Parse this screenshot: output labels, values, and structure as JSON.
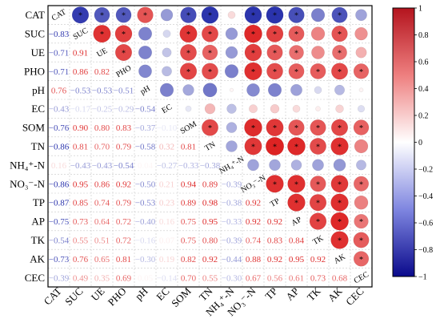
{
  "chart_data": {
    "type": "heatmap",
    "variables": [
      "CAT",
      "SUC",
      "UE",
      "PHO",
      "pH",
      "EC",
      "SOM",
      "TN",
      "NH₄⁺-N",
      "NO₃⁻-N",
      "TP",
      "AP",
      "TK",
      "AK",
      "CEC"
    ],
    "lower_triangle_labels": [
      [],
      [
        "−0.83"
      ],
      [
        "−0.71",
        "0.91"
      ],
      [
        "−0.71",
        "0.86",
        "0.82"
      ],
      [
        "0.76",
        "−0.53",
        "−0.53",
        "−0.51"
      ],
      [
        "−0.43",
        "−0.17",
        "−0.25",
        "−0.29",
        "−0.54"
      ],
      [
        "−0.76",
        "0.90",
        "0.80",
        "0.83",
        "−0.37",
        "−0.10"
      ],
      [
        "−0.86",
        "0.81",
        "0.70",
        "0.79",
        "−0.58",
        "0.32",
        "0.81"
      ],
      [
        "0.16",
        "−0.43",
        "−0.43",
        "−0.54",
        "0.04",
        "−0.27",
        "−0.33",
        "−0.38"
      ],
      [
        "−0.86",
        "0.95",
        "0.86",
        "0.92",
        "−0.50",
        "0.21",
        "0.94",
        "0.89",
        "−0.39"
      ],
      [
        "−0.87",
        "0.85",
        "0.74",
        "0.79",
        "−0.53",
        "0.23",
        "0.89",
        "0.98",
        "−0.38",
        "0.92"
      ],
      [
        "−0.75",
        "0.73",
        "0.64",
        "0.72",
        "−0.40",
        "0.16",
        "0.75",
        "0.95",
        "−0.33",
        "0.92",
        "0.92"
      ],
      [
        "−0.54",
        "0.55",
        "0.51",
        "0.72",
        "−0.16",
        "0.07",
        "0.75",
        "0.80",
        "−0.39",
        "0.74",
        "0.83",
        "0.84"
      ],
      [
        "−0.73",
        "0.76",
        "0.65",
        "0.81",
        "−0.30",
        "0.19",
        "0.82",
        "0.92",
        "−0.44",
        "0.88",
        "0.92",
        "0.95",
        "0.92"
      ],
      [
        "−0.39",
        "0.49",
        "0.35",
        "0.69",
        "0.05",
        "−0.14",
        "0.70",
        "0.55",
        "−0.30",
        "0.67",
        "0.56",
        "0.61",
        "0.73",
        "0.68"
      ]
    ],
    "upper_triangle_circles": [
      {
        "row": "CAT",
        "col": "SUC",
        "r": -0.83,
        "sig": true
      },
      {
        "row": "CAT",
        "col": "UE",
        "r": -0.71,
        "sig": true
      },
      {
        "row": "CAT",
        "col": "PHO",
        "r": -0.71,
        "sig": true
      },
      {
        "row": "CAT",
        "col": "pH",
        "r": 0.76,
        "sig": true
      },
      {
        "row": "CAT",
        "col": "EC",
        "r": -0.43,
        "sig": false
      },
      {
        "row": "CAT",
        "col": "SOM",
        "r": -0.76,
        "sig": true
      },
      {
        "row": "CAT",
        "col": "TN",
        "r": -0.86,
        "sig": true
      },
      {
        "row": "CAT",
        "col": "NH₄⁺-N",
        "r": 0.16,
        "sig": false
      },
      {
        "row": "CAT",
        "col": "NO₃⁻-N",
        "r": -0.86,
        "sig": true
      },
      {
        "row": "CAT",
        "col": "TP",
        "r": -0.87,
        "sig": true
      },
      {
        "row": "CAT",
        "col": "AP",
        "r": -0.75,
        "sig": true
      },
      {
        "row": "CAT",
        "col": "TK",
        "r": -0.54,
        "sig": false
      },
      {
        "row": "CAT",
        "col": "AK",
        "r": -0.73,
        "sig": true
      },
      {
        "row": "CAT",
        "col": "CEC",
        "r": -0.39,
        "sig": false
      },
      {
        "row": "SUC",
        "col": "UE",
        "r": 0.91,
        "sig": true
      },
      {
        "row": "SUC",
        "col": "PHO",
        "r": 0.86,
        "sig": true
      },
      {
        "row": "SUC",
        "col": "pH",
        "r": -0.53,
        "sig": false
      },
      {
        "row": "SUC",
        "col": "EC",
        "r": -0.17,
        "sig": false
      },
      {
        "row": "SUC",
        "col": "SOM",
        "r": 0.9,
        "sig": true
      },
      {
        "row": "SUC",
        "col": "TN",
        "r": 0.81,
        "sig": true
      },
      {
        "row": "SUC",
        "col": "NH₄⁺-N",
        "r": -0.43,
        "sig": false
      },
      {
        "row": "SUC",
        "col": "NO₃⁻-N",
        "r": 0.95,
        "sig": true
      },
      {
        "row": "SUC",
        "col": "TP",
        "r": 0.85,
        "sig": true
      },
      {
        "row": "SUC",
        "col": "AP",
        "r": 0.73,
        "sig": true
      },
      {
        "row": "SUC",
        "col": "TK",
        "r": 0.55,
        "sig": false
      },
      {
        "row": "SUC",
        "col": "AK",
        "r": 0.76,
        "sig": true
      },
      {
        "row": "SUC",
        "col": "CEC",
        "r": 0.49,
        "sig": false
      },
      {
        "row": "UE",
        "col": "PHO",
        "r": 0.82,
        "sig": true
      },
      {
        "row": "UE",
        "col": "pH",
        "r": -0.53,
        "sig": false
      },
      {
        "row": "UE",
        "col": "EC",
        "r": -0.25,
        "sig": false
      },
      {
        "row": "UE",
        "col": "SOM",
        "r": 0.8,
        "sig": true
      },
      {
        "row": "UE",
        "col": "TN",
        "r": 0.7,
        "sig": true
      },
      {
        "row": "UE",
        "col": "NH₄⁺-N",
        "r": -0.43,
        "sig": false
      },
      {
        "row": "UE",
        "col": "NO₃⁻-N",
        "r": 0.86,
        "sig": true
      },
      {
        "row": "UE",
        "col": "TP",
        "r": 0.74,
        "sig": true
      },
      {
        "row": "UE",
        "col": "AP",
        "r": 0.64,
        "sig": true
      },
      {
        "row": "UE",
        "col": "TK",
        "r": 0.51,
        "sig": false
      },
      {
        "row": "UE",
        "col": "AK",
        "r": 0.65,
        "sig": true
      },
      {
        "row": "UE",
        "col": "CEC",
        "r": 0.35,
        "sig": false
      },
      {
        "row": "PHO",
        "col": "pH",
        "r": -0.51,
        "sig": false
      },
      {
        "row": "PHO",
        "col": "EC",
        "r": -0.29,
        "sig": false
      },
      {
        "row": "PHO",
        "col": "SOM",
        "r": 0.83,
        "sig": true
      },
      {
        "row": "PHO",
        "col": "TN",
        "r": 0.79,
        "sig": true
      },
      {
        "row": "PHO",
        "col": "NH₄⁺-N",
        "r": -0.54,
        "sig": false
      },
      {
        "row": "PHO",
        "col": "NO₃⁻-N",
        "r": 0.92,
        "sig": true
      },
      {
        "row": "PHO",
        "col": "TP",
        "r": 0.79,
        "sig": true
      },
      {
        "row": "PHO",
        "col": "AP",
        "r": 0.72,
        "sig": true
      },
      {
        "row": "PHO",
        "col": "TK",
        "r": 0.72,
        "sig": true
      },
      {
        "row": "PHO",
        "col": "AK",
        "r": 0.81,
        "sig": true
      },
      {
        "row": "PHO",
        "col": "CEC",
        "r": 0.69,
        "sig": true
      },
      {
        "row": "pH",
        "col": "EC",
        "r": -0.54,
        "sig": false
      },
      {
        "row": "pH",
        "col": "SOM",
        "r": -0.37,
        "sig": false
      },
      {
        "row": "pH",
        "col": "TN",
        "r": -0.58,
        "sig": false
      },
      {
        "row": "pH",
        "col": "NH₄⁺-N",
        "r": 0.04,
        "sig": false
      },
      {
        "row": "pH",
        "col": "NO₃⁻-N",
        "r": -0.5,
        "sig": false
      },
      {
        "row": "pH",
        "col": "TP",
        "r": -0.53,
        "sig": false
      },
      {
        "row": "pH",
        "col": "AP",
        "r": -0.4,
        "sig": false
      },
      {
        "row": "pH",
        "col": "TK",
        "r": -0.16,
        "sig": false
      },
      {
        "row": "pH",
        "col": "AK",
        "r": -0.3,
        "sig": false
      },
      {
        "row": "pH",
        "col": "CEC",
        "r": 0.05,
        "sig": false
      },
      {
        "row": "EC",
        "col": "SOM",
        "r": -0.1,
        "sig": false
      },
      {
        "row": "EC",
        "col": "TN",
        "r": 0.32,
        "sig": false
      },
      {
        "row": "EC",
        "col": "NH₄⁺-N",
        "r": -0.27,
        "sig": false
      },
      {
        "row": "EC",
        "col": "NO₃⁻-N",
        "r": 0.21,
        "sig": false
      },
      {
        "row": "EC",
        "col": "TP",
        "r": 0.23,
        "sig": false
      },
      {
        "row": "EC",
        "col": "AP",
        "r": 0.16,
        "sig": false
      },
      {
        "row": "EC",
        "col": "TK",
        "r": 0.07,
        "sig": false
      },
      {
        "row": "EC",
        "col": "AK",
        "r": 0.19,
        "sig": false
      },
      {
        "row": "EC",
        "col": "CEC",
        "r": -0.14,
        "sig": false
      },
      {
        "row": "SOM",
        "col": "TN",
        "r": 0.81,
        "sig": true
      },
      {
        "row": "SOM",
        "col": "NH₄⁺-N",
        "r": -0.33,
        "sig": false
      },
      {
        "row": "SOM",
        "col": "NO₃⁻-N",
        "r": 0.94,
        "sig": true
      },
      {
        "row": "SOM",
        "col": "TP",
        "r": 0.89,
        "sig": true
      },
      {
        "row": "SOM",
        "col": "AP",
        "r": 0.75,
        "sig": true
      },
      {
        "row": "SOM",
        "col": "TK",
        "r": 0.75,
        "sig": true
      },
      {
        "row": "SOM",
        "col": "AK",
        "r": 0.82,
        "sig": true
      },
      {
        "row": "SOM",
        "col": "CEC",
        "r": 0.7,
        "sig": true
      },
      {
        "row": "TN",
        "col": "NH₄⁺-N",
        "r": -0.38,
        "sig": false
      },
      {
        "row": "TN",
        "col": "NO₃⁻-N",
        "r": 0.89,
        "sig": true
      },
      {
        "row": "TN",
        "col": "TP",
        "r": 0.98,
        "sig": true
      },
      {
        "row": "TN",
        "col": "AP",
        "r": 0.95,
        "sig": true
      },
      {
        "row": "TN",
        "col": "TK",
        "r": 0.8,
        "sig": true
      },
      {
        "row": "TN",
        "col": "AK",
        "r": 0.92,
        "sig": true
      },
      {
        "row": "TN",
        "col": "CEC",
        "r": 0.55,
        "sig": false
      },
      {
        "row": "NH₄⁺-N",
        "col": "NO₃⁻-N",
        "r": -0.39,
        "sig": false
      },
      {
        "row": "NH₄⁺-N",
        "col": "TP",
        "r": -0.38,
        "sig": false
      },
      {
        "row": "NH₄⁺-N",
        "col": "AP",
        "r": -0.33,
        "sig": false
      },
      {
        "row": "NH₄⁺-N",
        "col": "TK",
        "r": -0.39,
        "sig": false
      },
      {
        "row": "NH₄⁺-N",
        "col": "AK",
        "r": -0.44,
        "sig": false
      },
      {
        "row": "NH₄⁺-N",
        "col": "CEC",
        "r": -0.3,
        "sig": false
      },
      {
        "row": "NO₃⁻-N",
        "col": "TP",
        "r": 0.92,
        "sig": true
      },
      {
        "row": "NO₃⁻-N",
        "col": "AP",
        "r": 0.92,
        "sig": true
      },
      {
        "row": "NO₃⁻-N",
        "col": "TK",
        "r": 0.74,
        "sig": true
      },
      {
        "row": "NO₃⁻-N",
        "col": "AK",
        "r": 0.88,
        "sig": true
      },
      {
        "row": "NO₃⁻-N",
        "col": "CEC",
        "r": 0.67,
        "sig": true
      },
      {
        "row": "TP",
        "col": "AP",
        "r": 0.92,
        "sig": true
      },
      {
        "row": "TP",
        "col": "TK",
        "r": 0.83,
        "sig": true
      },
      {
        "row": "TP",
        "col": "AK",
        "r": 0.92,
        "sig": true
      },
      {
        "row": "TP",
        "col": "CEC",
        "r": 0.56,
        "sig": false
      },
      {
        "row": "AP",
        "col": "TK",
        "r": 0.84,
        "sig": true
      },
      {
        "row": "AP",
        "col": "AK",
        "r": 0.95,
        "sig": true
      },
      {
        "row": "AP",
        "col": "CEC",
        "r": 0.61,
        "sig": true
      },
      {
        "row": "TK",
        "col": "AK",
        "r": 0.92,
        "sig": true
      },
      {
        "row": "TK",
        "col": "CEC",
        "r": 0.73,
        "sig": true
      },
      {
        "row": "AK",
        "col": "CEC",
        "r": 0.68,
        "sig": true
      }
    ],
    "significance_marker": "*",
    "colorbar": {
      "ticks": [
        "1",
        "0.8",
        "0.6",
        "0.4",
        "0.2",
        "0",
        "−0.2",
        "−0.4",
        "−0.6",
        "−0.8",
        "−1"
      ],
      "range": [
        -1,
        1
      ],
      "color_negative": "#0a14a0",
      "color_mid": "#ffffff",
      "color_positive": "#dc1e1e"
    }
  }
}
